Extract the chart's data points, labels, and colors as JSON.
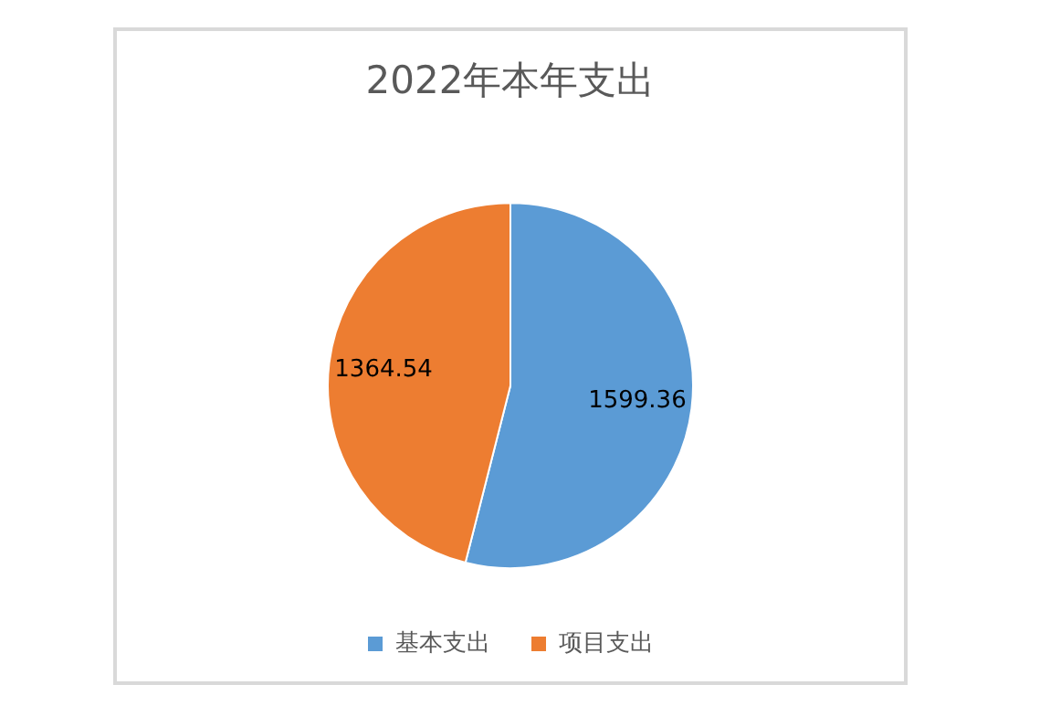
{
  "chart_data": {
    "type": "pie",
    "title": "2022年本年支出",
    "categories": [
      "基本支出",
      "项目支出"
    ],
    "values": [
      1599.36,
      1364.54
    ],
    "colors": [
      "#5b9bd5",
      "#ed7d31"
    ],
    "data_labels": true,
    "legend": "bottom"
  }
}
